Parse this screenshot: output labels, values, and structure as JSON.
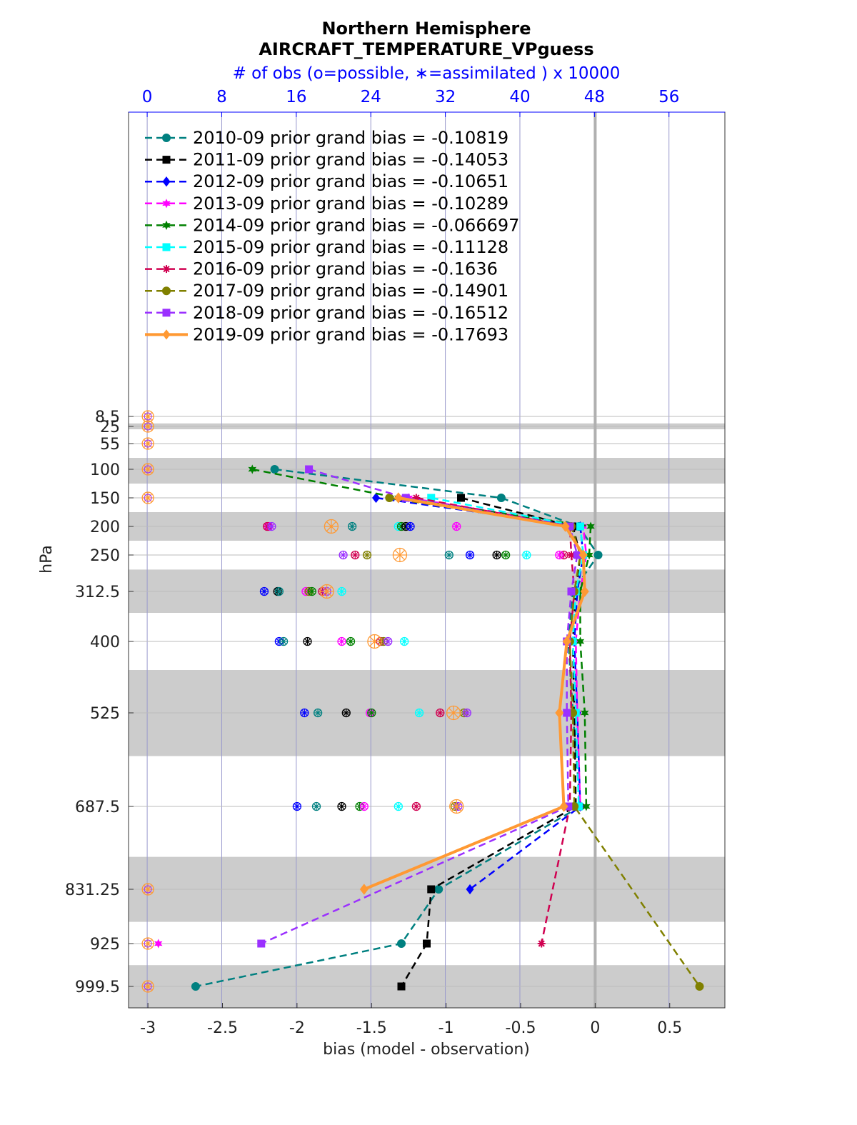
{
  "chart_data": {
    "type": "line",
    "title": "Northern Hemisphere",
    "subtitle": "AIRCRAFT_TEMPERATURE_VPguess",
    "top_axis_label": "# of obs (o=possible, ∗=assimilated ) x 10000",
    "xlabel": "bias (model - observation)",
    "ylabel": "hPa",
    "xlim": [
      -3.13,
      0.87
    ],
    "x_ticks": [
      "-3",
      "-2.5",
      "-2",
      "-1.5",
      "-1",
      "-0.5",
      "0",
      "0.5"
    ],
    "top_xlim": [
      -2.0,
      62.0
    ],
    "top_ticks": [
      "0",
      "8",
      "16",
      "24",
      "32",
      "40",
      "48",
      "56"
    ],
    "y_levels": [
      8.5,
      25,
      55,
      100,
      150,
      200,
      250,
      312.5,
      400,
      525,
      687.5,
      831.25,
      925,
      999.5
    ],
    "y_tick_labels": [
      "8.5",
      "25",
      "55",
      "100",
      "150",
      "200",
      "250",
      "312.5",
      "400",
      "525",
      "687.5",
      "831.25",
      "925",
      "999.5"
    ],
    "shaded_bands": [
      [
        20,
        30
      ],
      [
        80,
        125
      ],
      [
        175,
        225
      ],
      [
        275,
        350
      ],
      [
        450,
        600
      ],
      [
        775,
        887.5
      ],
      [
        962.5,
        1037
      ]
    ],
    "zero_line": 0,
    "grid": true,
    "legend_location": "top-left",
    "series": [
      {
        "name": "2010-09 prior grand bias = -0.10819",
        "color": "#008080",
        "marker": "circle",
        "y": [
          100,
          150,
          200,
          250,
          312.5,
          400,
          525,
          687.5,
          831.25,
          925,
          999.5
        ],
        "x": [
          -2.15,
          -0.63,
          -0.11,
          0.02,
          -0.15,
          -0.18,
          -0.15,
          -0.1,
          -1.05,
          -1.3,
          -2.68
        ]
      },
      {
        "name": "2011-09 prior grand bias = -0.14053",
        "color": "#000000",
        "marker": "square",
        "y": [
          150,
          200,
          250,
          312.5,
          400,
          525,
          687.5,
          831.25,
          925,
          999.5
        ],
        "x": [
          -0.9,
          -0.15,
          -0.1,
          -0.13,
          -0.15,
          -0.14,
          -0.13,
          -1.1,
          -1.13,
          -1.3
        ]
      },
      {
        "name": "2012-09 prior grand bias = -0.10651",
        "color": "#0000ff",
        "marker": "diamond",
        "y": [
          150,
          200,
          250,
          312.5,
          400,
          525,
          687.5,
          831.25
        ],
        "x": [
          -1.47,
          -0.1,
          -0.08,
          -0.12,
          -0.14,
          -0.12,
          -0.1,
          -0.84
        ]
      },
      {
        "name": "2013-09 prior grand bias = -0.10289",
        "color": "#ff00ff",
        "marker": "hexagram",
        "y": [
          150,
          200,
          250,
          312.5,
          400,
          525,
          687.5
        ],
        "x": [
          -1.25,
          -0.08,
          -0.06,
          -0.1,
          -0.13,
          -0.12,
          -0.1
        ]
      },
      {
        "name": "2014-09 prior grand bias = -0.066697",
        "color": "#008000",
        "marker": "hexagram",
        "y": [
          100,
          150,
          200,
          250,
          312.5,
          400,
          525,
          687.5
        ],
        "x": [
          -2.3,
          -1.32,
          -0.03,
          -0.04,
          -0.1,
          -0.1,
          -0.07,
          -0.06
        ]
      },
      {
        "name": "2015-09 prior grand bias = -0.11128",
        "color": "#00ffff",
        "marker": "square",
        "y": [
          150,
          200,
          250,
          312.5,
          400,
          525,
          687.5
        ],
        "x": [
          -1.1,
          -0.1,
          -0.08,
          -0.13,
          -0.15,
          -0.13,
          -0.11
        ]
      },
      {
        "name": "2016-09 prior grand bias = -0.1636",
        "color": "#d00050",
        "marker": "asterisk",
        "y": [
          150,
          200,
          250,
          312.5,
          400,
          525,
          687.5,
          925
        ],
        "x": [
          -1.2,
          -0.17,
          -0.16,
          -0.14,
          -0.17,
          -0.16,
          -0.17,
          -0.36
        ]
      },
      {
        "name": "2017-09 prior grand bias = -0.14901",
        "color": "#808000",
        "marker": "circle",
        "y": [
          150,
          200,
          250,
          312.5,
          400,
          525,
          687.5,
          999.5
        ],
        "x": [
          -1.38,
          -0.16,
          -0.1,
          -0.14,
          -0.17,
          -0.15,
          -0.14,
          0.7
        ]
      },
      {
        "name": "2018-09 prior grand bias = -0.16512",
        "color": "#9b30ff",
        "marker": "square",
        "y": [
          100,
          150,
          200,
          250,
          312.5,
          400,
          525,
          687.5,
          925
        ],
        "x": [
          -1.92,
          -1.27,
          -0.17,
          -0.12,
          -0.16,
          -0.19,
          -0.19,
          -0.18,
          -2.24
        ]
      },
      {
        "name": "2019-09 prior grand bias = -0.17693",
        "color": "#ff9933",
        "marker": "diamond",
        "thick": true,
        "y": [
          150,
          200,
          250,
          312.5,
          400,
          525,
          687.5,
          831.25
        ],
        "x": [
          -1.32,
          -0.2,
          -0.08,
          -0.07,
          -0.19,
          -0.24,
          -0.21,
          -1.55
        ]
      }
    ],
    "obs_markers": [
      {
        "y": 200,
        "color": "#ff00ff",
        "x": [
          -2.19,
          -0.93
        ]
      },
      {
        "y": 200,
        "color": "#d00050",
        "x": [
          -2.2
        ]
      },
      {
        "y": 200,
        "color": "#9b30ff",
        "x": [
          -2.17
        ]
      },
      {
        "y": 200,
        "color": "#008080",
        "x": [
          -1.63
        ]
      },
      {
        "y": 200,
        "color": "#00ffff",
        "x": [
          -1.32
        ]
      },
      {
        "y": 200,
        "color": "#008000",
        "x": [
          -1.3
        ]
      },
      {
        "y": 200,
        "color": "#000000",
        "x": [
          -1.27
        ]
      },
      {
        "y": 200,
        "color": "#0000ff",
        "x": [
          -1.24
        ]
      },
      {
        "y": 250,
        "color": "#9b30ff",
        "x": [
          -1.69
        ]
      },
      {
        "y": 250,
        "color": "#d00050",
        "x": [
          -1.61,
          -0.21
        ]
      },
      {
        "y": 250,
        "color": "#808000",
        "x": [
          -1.53
        ]
      },
      {
        "y": 250,
        "color": "#008080",
        "x": [
          -0.98
        ]
      },
      {
        "y": 250,
        "color": "#0000ff",
        "x": [
          -0.84
        ]
      },
      {
        "y": 250,
        "color": "#000000",
        "x": [
          -0.66
        ]
      },
      {
        "y": 250,
        "color": "#008000",
        "x": [
          -0.6
        ]
      },
      {
        "y": 250,
        "color": "#00ffff",
        "x": [
          -0.46
        ]
      },
      {
        "y": 250,
        "color": "#ff00ff",
        "x": [
          -0.24
        ]
      },
      {
        "y": 312.5,
        "color": "#0000ff",
        "x": [
          -2.22
        ]
      },
      {
        "y": 312.5,
        "color": "#000000",
        "x": [
          -2.13
        ]
      },
      {
        "y": 312.5,
        "color": "#008080",
        "x": [
          -2.12
        ]
      },
      {
        "y": 312.5,
        "color": "#ff00ff",
        "x": [
          -1.94
        ]
      },
      {
        "y": 312.5,
        "color": "#808000",
        "x": [
          -1.92
        ]
      },
      {
        "y": 312.5,
        "color": "#008000",
        "x": [
          -1.9
        ]
      },
      {
        "y": 312.5,
        "color": "#d00050",
        "x": [
          -1.83
        ]
      },
      {
        "y": 312.5,
        "color": "#9b30ff",
        "x": [
          -1.8
        ]
      },
      {
        "y": 312.5,
        "color": "#00ffff",
        "x": [
          -1.7
        ]
      },
      {
        "y": 400,
        "color": "#0000ff",
        "x": [
          -2.12
        ]
      },
      {
        "y": 400,
        "color": "#008080",
        "x": [
          -2.09
        ]
      },
      {
        "y": 400,
        "color": "#000000",
        "x": [
          -1.93
        ]
      },
      {
        "y": 400,
        "color": "#ff00ff",
        "x": [
          -1.7
        ]
      },
      {
        "y": 400,
        "color": "#008000",
        "x": [
          -1.64
        ]
      },
      {
        "y": 400,
        "color": "#d00050",
        "x": [
          -1.44
        ]
      },
      {
        "y": 400,
        "color": "#808000",
        "x": [
          -1.42
        ]
      },
      {
        "y": 400,
        "color": "#9b30ff",
        "x": [
          -1.39
        ]
      },
      {
        "y": 400,
        "color": "#00ffff",
        "x": [
          -1.28
        ]
      },
      {
        "y": 525,
        "color": "#0000ff",
        "x": [
          -1.95
        ]
      },
      {
        "y": 525,
        "color": "#008080",
        "x": [
          -1.86
        ]
      },
      {
        "y": 525,
        "color": "#000000",
        "x": [
          -1.67
        ]
      },
      {
        "y": 525,
        "color": "#ff00ff",
        "x": [
          -1.51
        ]
      },
      {
        "y": 525,
        "color": "#008000",
        "x": [
          -1.5
        ]
      },
      {
        "y": 525,
        "color": "#00ffff",
        "x": [
          -1.18
        ]
      },
      {
        "y": 525,
        "color": "#d00050",
        "x": [
          -1.04
        ]
      },
      {
        "y": 525,
        "color": "#808000",
        "x": [
          -0.88
        ]
      },
      {
        "y": 525,
        "color": "#9b30ff",
        "x": [
          -0.86
        ]
      },
      {
        "y": 687.5,
        "color": "#0000ff",
        "x": [
          -2.0
        ]
      },
      {
        "y": 687.5,
        "color": "#008080",
        "x": [
          -1.87
        ]
      },
      {
        "y": 687.5,
        "color": "#000000",
        "x": [
          -1.7
        ]
      },
      {
        "y": 687.5,
        "color": "#008000",
        "x": [
          -1.58
        ]
      },
      {
        "y": 687.5,
        "color": "#ff00ff",
        "x": [
          -1.55
        ]
      },
      {
        "y": 687.5,
        "color": "#00ffff",
        "x": [
          -1.32
        ]
      },
      {
        "y": 687.5,
        "color": "#d00050",
        "x": [
          -1.2
        ]
      },
      {
        "y": 687.5,
        "color": "#808000",
        "x": [
          -0.94
        ]
      },
      {
        "y": 687.5,
        "color": "#9b30ff",
        "x": [
          -0.92
        ]
      }
    ],
    "orange_obs_circles": [
      {
        "y": 8.5,
        "x": -3.0
      },
      {
        "y": 25,
        "x": -3.0
      },
      {
        "y": 55,
        "x": -3.0
      },
      {
        "y": 100,
        "x": -3.0
      },
      {
        "y": 150,
        "x": -3.0
      },
      {
        "y": 200,
        "x": -1.77
      },
      {
        "y": 250,
        "x": -1.31
      },
      {
        "y": 312.5,
        "x": -1.8
      },
      {
        "y": 400,
        "x": -1.48
      },
      {
        "y": 525,
        "x": -0.95
      },
      {
        "y": 687.5,
        "x": -0.93
      },
      {
        "y": 831.25,
        "x": -3.0
      },
      {
        "y": 925,
        "x": -3.0
      },
      {
        "y": 999.5,
        "x": -3.0
      }
    ],
    "stray_points": [
      {
        "y": 925,
        "x": -2.93,
        "color": "#ff00ff",
        "marker": "hexagram"
      }
    ]
  }
}
